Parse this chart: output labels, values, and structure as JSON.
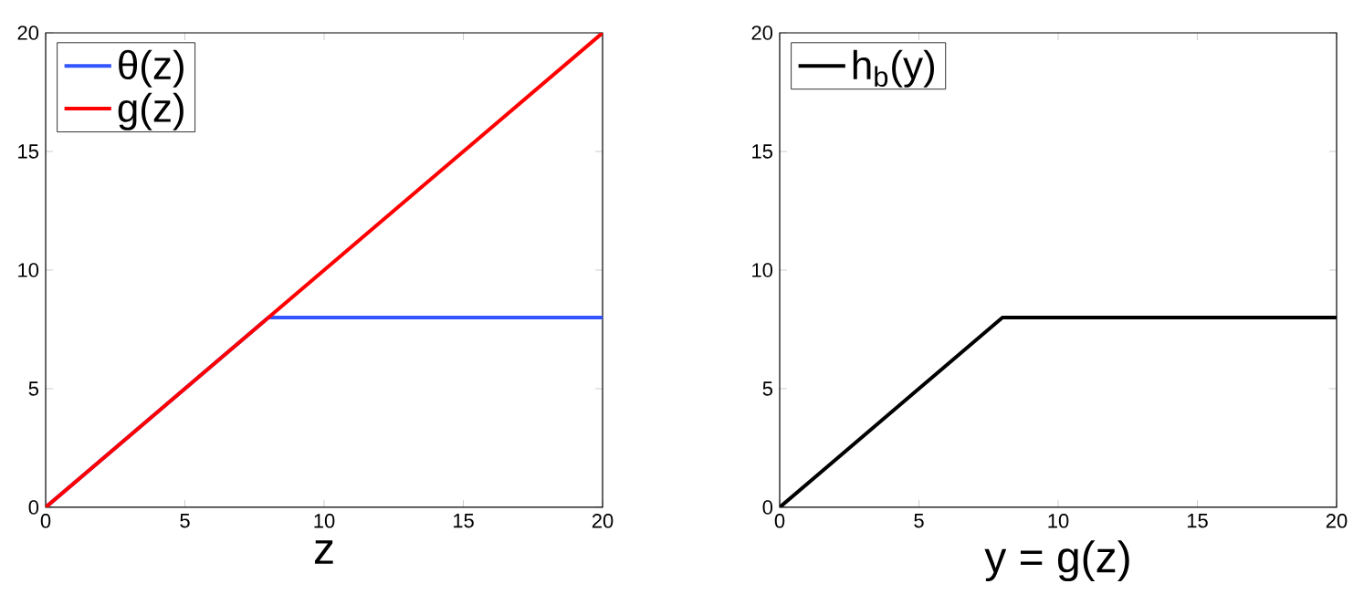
{
  "chart_data": [
    {
      "type": "line",
      "xlabel": "z",
      "xlim": [
        0,
        20
      ],
      "ylim": [
        0,
        20
      ],
      "xticks": [
        0,
        5,
        10,
        15,
        20
      ],
      "yticks": [
        0,
        5,
        10,
        15,
        20
      ],
      "grid": false,
      "legend": "top left",
      "marker": "none",
      "line_style": "solid",
      "series": [
        {
          "name": "θ(z)",
          "color": "#3355ff",
          "x": [
            0,
            8,
            20
          ],
          "values": [
            0,
            8,
            8
          ]
        },
        {
          "name": "g(z)",
          "color": "#ff0000",
          "x": [
            0,
            20
          ],
          "values": [
            0,
            20
          ]
        }
      ]
    },
    {
      "type": "line",
      "xlabel": "y = g(z)",
      "xlim": [
        0,
        20
      ],
      "ylim": [
        0,
        20
      ],
      "xticks": [
        0,
        5,
        10,
        15,
        20
      ],
      "yticks": [
        0,
        5,
        10,
        15,
        20
      ],
      "grid": false,
      "legend": "top left",
      "marker": "none",
      "line_style": "solid",
      "series": [
        {
          "name": "h$_{b}$(y)",
          "color": "#000000",
          "x": [
            0,
            8,
            20
          ],
          "values": [
            0,
            8,
            8
          ]
        }
      ]
    }
  ]
}
